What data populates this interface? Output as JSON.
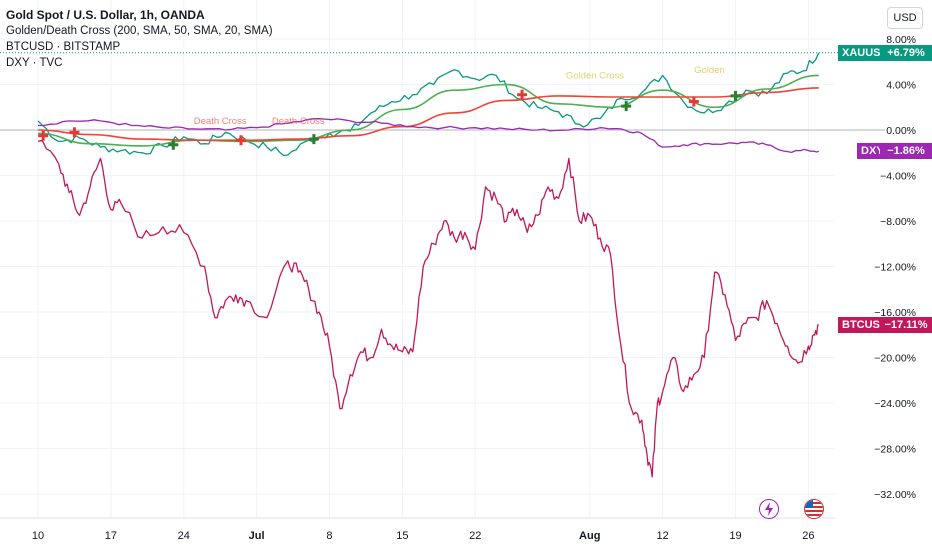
{
  "legend": {
    "title": "Gold Spot / U.S. Dollar, 1h, OANDA",
    "indicator": "Golden/Death Cross (200, SMA, 50, SMA, 20, SMA)",
    "series2": "BTCUSD · BITSTAMP",
    "series3": "DXY · TVC"
  },
  "currency_button": "USD",
  "badges": {
    "xauusd": {
      "name": "XAUUSD",
      "value": "+6.79%"
    },
    "dxy": {
      "name": "DXY",
      "value": "−1.86%"
    },
    "btcusd": {
      "name": "BTCUSD",
      "value": "−17.11%"
    }
  },
  "colors": {
    "xauusd": "#089981",
    "dxy": "#9c27b0",
    "btcusd": "#c2185b",
    "sma_fast": "#4caf50",
    "sma_slow": "#f44336",
    "cross_marker_gold": "#2e7d32",
    "cross_marker_death": "#e53935",
    "grid": "#f0f3fa",
    "axis_text": "#131722"
  },
  "icons": {
    "flash": "lightning-icon",
    "flag": "us-flag-icon"
  },
  "chart_data": {
    "type": "line",
    "x_tick_labels": [
      "10",
      "17",
      "24",
      "Jul",
      "8",
      "15",
      "22",
      "Aug",
      "12",
      "19",
      "26"
    ],
    "y_tick_labels": [
      "8.00%",
      "4.00%",
      "0.00%",
      "−4.00%",
      "−8.00%",
      "−12.00%",
      "−16.00%",
      "−20.00%",
      "−24.00%",
      "−28.00%",
      "−32.00%"
    ],
    "ylim": [
      -33,
      9
    ],
    "xlim": [
      0,
      78
    ],
    "annotations": [
      {
        "text": "Death Cross",
        "x": 17.5,
        "y": 0.0
      },
      {
        "text": "Death Cross",
        "x": 25.0,
        "y": 0.0
      },
      {
        "text": "Golden Cross",
        "x": 53.5,
        "y": 4.0
      },
      {
        "text": "Golden",
        "x": 64.5,
        "y": 4.5
      }
    ],
    "cross_markers": [
      {
        "kind": "death",
        "x": 0.5,
        "y": -0.5
      },
      {
        "kind": "death",
        "x": 3.5,
        "y": -0.2
      },
      {
        "kind": "golden",
        "x": 13.0,
        "y": -1.3
      },
      {
        "kind": "death",
        "x": 19.5,
        "y": -0.9
      },
      {
        "kind": "golden",
        "x": 26.5,
        "y": -0.8
      },
      {
        "kind": "death",
        "x": 46.5,
        "y": 3.1
      },
      {
        "kind": "golden",
        "x": 56.5,
        "y": 2.1
      },
      {
        "kind": "death",
        "x": 63.0,
        "y": 2.5
      },
      {
        "kind": "golden",
        "x": 67.0,
        "y": 3.0
      }
    ],
    "series": [
      {
        "name": "XAUUSD",
        "x": [
          0,
          2,
          4,
          6,
          8,
          10,
          12,
          14,
          16,
          18,
          20,
          22,
          24,
          26,
          28,
          30,
          32,
          34,
          36,
          38,
          40,
          42,
          44,
          46,
          48,
          50,
          52,
          54,
          56,
          58,
          60,
          62,
          64,
          66,
          68,
          70,
          72,
          73.5,
          75
        ],
        "values": [
          0.8,
          -1.0,
          -0.7,
          -1.5,
          -1.8,
          -2.0,
          -1.4,
          -0.6,
          -1.2,
          -0.2,
          -0.9,
          -1.5,
          -2.2,
          -0.9,
          -0.3,
          -0.1,
          1.5,
          2.5,
          3.1,
          4.0,
          5.3,
          4.5,
          4.8,
          2.8,
          2.0,
          1.6,
          0.5,
          1.0,
          2.8,
          3.3,
          4.8,
          2.5,
          1.5,
          2.2,
          3.5,
          3.2,
          5.0,
          5.2,
          6.79
        ]
      },
      {
        "name": "SMA 50",
        "x": [
          0,
          5,
          10,
          15,
          20,
          25,
          30,
          35,
          40,
          45,
          50,
          55,
          60,
          65,
          70,
          75
        ],
        "values": [
          -0.3,
          -1.2,
          -1.4,
          -0.9,
          -1.0,
          -0.9,
          0.0,
          1.8,
          3.5,
          4.0,
          2.3,
          2.0,
          3.5,
          2.0,
          3.6,
          4.8
        ]
      },
      {
        "name": "SMA 200",
        "x": [
          0,
          5,
          10,
          15,
          20,
          25,
          30,
          35,
          40,
          45,
          50,
          55,
          60,
          65,
          70,
          75
        ],
        "values": [
          0.0,
          -0.4,
          -0.8,
          -0.9,
          -0.9,
          -0.8,
          -0.5,
          0.3,
          1.5,
          2.6,
          3.0,
          2.9,
          2.9,
          2.9,
          3.3,
          3.7
        ]
      },
      {
        "name": "DXY",
        "x": [
          0,
          3,
          6,
          9,
          12,
          15,
          18,
          21,
          24,
          27,
          30,
          33,
          36,
          39,
          42,
          45,
          48,
          51,
          54,
          56,
          58,
          60,
          62,
          64,
          66,
          68,
          70,
          72,
          74,
          75
        ],
        "values": [
          0.4,
          0.8,
          0.8,
          0.4,
          0.2,
          0.1,
          0.0,
          0.2,
          0.6,
          1.0,
          0.8,
          0.6,
          0.3,
          0.2,
          0.2,
          0.1,
          0.0,
          0.0,
          0.2,
          0.1,
          -0.3,
          -1.5,
          -1.3,
          -1.2,
          -1.2,
          -1.1,
          -1.3,
          -1.9,
          -1.8,
          -1.86
        ]
      },
      {
        "name": "BTCUSD",
        "x": [
          0,
          2,
          3,
          4,
          5,
          6,
          7,
          8,
          10,
          12,
          14,
          16,
          17,
          18,
          19,
          20,
          22,
          24,
          25,
          26,
          27,
          28,
          29,
          30,
          31,
          32,
          33,
          34,
          35,
          36,
          37,
          38,
          39,
          40,
          41,
          42,
          43,
          44,
          45,
          46,
          47,
          48,
          49,
          50,
          51,
          52,
          53,
          54,
          55,
          56,
          57,
          58,
          58.5,
          59,
          59.5,
          60,
          61,
          62,
          63,
          64,
          65,
          66,
          67,
          68,
          69,
          70,
          71,
          72,
          73,
          74,
          74.5,
          75
        ],
        "values": [
          -1.0,
          -3.0,
          -5.5,
          -7.5,
          -5.0,
          -2.5,
          -7.0,
          -6.5,
          -9.5,
          -8.5,
          -9.0,
          -12.0,
          -16.5,
          -15.0,
          -14.5,
          -15.0,
          -16.5,
          -11.5,
          -12.5,
          -14.0,
          -16.0,
          -19.0,
          -24.5,
          -21.5,
          -19.5,
          -20.0,
          -17.5,
          -19.0,
          -19.5,
          -19.5,
          -12.0,
          -10.0,
          -8.0,
          -9.5,
          -9.0,
          -10.5,
          -5.0,
          -6.0,
          -8.0,
          -7.0,
          -9.0,
          -7.5,
          -5.0,
          -6.0,
          -2.5,
          -8.0,
          -7.5,
          -9.5,
          -11.0,
          -19.0,
          -24.5,
          -25.5,
          -28.5,
          -30.5,
          -24.0,
          -23.0,
          -20.0,
          -23.0,
          -21.5,
          -20.0,
          -12.5,
          -14.5,
          -18.5,
          -17.0,
          -16.5,
          -15.0,
          -17.0,
          -19.0,
          -20.5,
          -19.0,
          -18.0,
          -17.11
        ]
      }
    ]
  }
}
